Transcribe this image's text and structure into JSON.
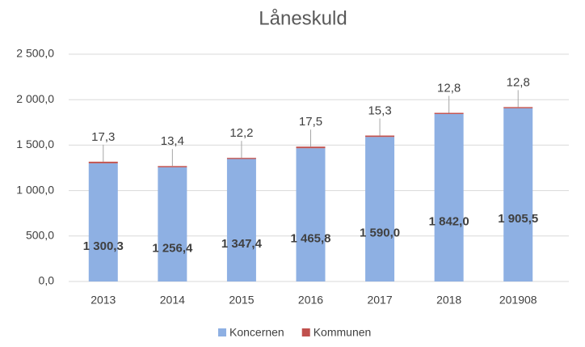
{
  "chart_data": {
    "type": "stacked_bar",
    "title": "Låneskuld",
    "categories": [
      "2013",
      "2014",
      "2015",
      "2016",
      "2017",
      "2018",
      "201908"
    ],
    "series": [
      {
        "name": "Koncernen",
        "color": "#8eb0e3",
        "values": [
          1300.3,
          1256.4,
          1347.4,
          1465.8,
          1590.0,
          1842.0,
          1905.5
        ],
        "value_labels": [
          "1 300,3",
          "1 256,4",
          "1 347,4",
          "1 465,8",
          "1 590,0",
          "1 842,0",
          "1 905,5"
        ]
      },
      {
        "name": "Kommunen",
        "color": "#c0504d",
        "values": [
          17.3,
          13.4,
          12.2,
          17.5,
          15.3,
          12.8,
          12.8
        ],
        "value_labels": [
          "17,3",
          "13,4",
          "12,2",
          "17,5",
          "15,3",
          "12,8",
          "12,8"
        ]
      }
    ],
    "ylim": [
      0,
      2500
    ],
    "yticks": [
      {
        "value": 0,
        "label": "0,0"
      },
      {
        "value": 500,
        "label": "500,0"
      },
      {
        "value": 1000,
        "label": "1 000,0"
      },
      {
        "value": 1500,
        "label": "1 500,0"
      },
      {
        "value": 2000,
        "label": "2 000,0"
      },
      {
        "value": 2500,
        "label": "2 500,0"
      }
    ],
    "grid": true,
    "legend": "bottom"
  }
}
